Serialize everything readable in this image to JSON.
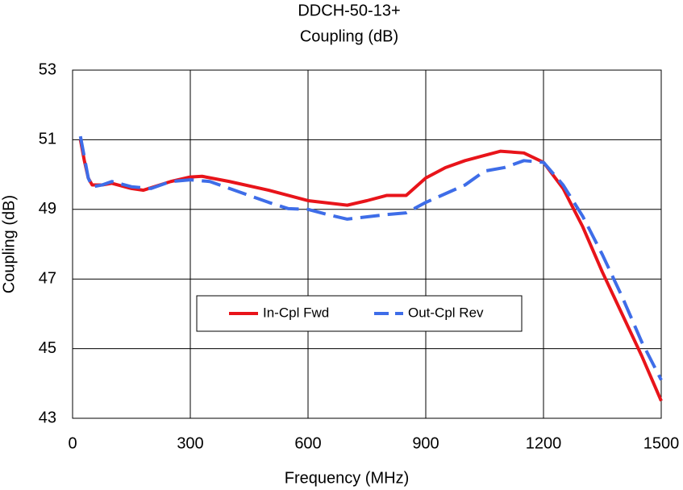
{
  "chart_data": {
    "type": "line",
    "title": "DDCH-50-13+",
    "subtitle": "Coupling (dB)",
    "x_label": "Frequency (MHz)",
    "y_label": "Coupling (dB)",
    "xlim": [
      0,
      1500
    ],
    "xticks": [
      0,
      300,
      600,
      900,
      1200,
      1500
    ],
    "ylim": [
      43,
      53
    ],
    "yticks": [
      43,
      45,
      47,
      49,
      51,
      53
    ],
    "grid": true,
    "legend": "center",
    "series": [
      {
        "name": "In-Cpl Fwd",
        "color": "#e8141a",
        "dashed": false,
        "x": [
          20,
          30,
          40,
          50,
          75,
          100,
          150,
          180,
          250,
          300,
          330,
          400,
          500,
          600,
          700,
          750,
          800,
          850,
          900,
          950,
          1000,
          1050,
          1090,
          1150,
          1200,
          1250,
          1300,
          1350,
          1400,
          1450,
          1500
        ],
        "values": [
          51.0,
          50.4,
          49.9,
          49.7,
          49.7,
          49.75,
          49.6,
          49.55,
          49.8,
          49.93,
          49.95,
          49.8,
          49.55,
          49.25,
          49.12,
          49.25,
          49.4,
          49.4,
          49.9,
          50.2,
          50.4,
          50.55,
          50.67,
          50.62,
          50.35,
          49.6,
          48.5,
          47.2,
          46.0,
          44.8,
          43.5
        ]
      },
      {
        "name": "Out-Cpl Rev",
        "color": "#3e6de8",
        "dashed": true,
        "x": [
          20,
          30,
          40,
          50,
          75,
          100,
          150,
          200,
          250,
          300,
          350,
          400,
          500,
          550,
          600,
          650,
          700,
          800,
          850,
          900,
          1000,
          1050,
          1100,
          1150,
          1200,
          1250,
          1300,
          1350,
          1400,
          1450,
          1500
        ],
        "values": [
          51.1,
          50.5,
          49.9,
          49.65,
          49.7,
          49.8,
          49.65,
          49.6,
          49.8,
          49.85,
          49.8,
          49.6,
          49.2,
          49.02,
          49.0,
          48.85,
          48.72,
          48.85,
          48.9,
          49.2,
          49.7,
          50.1,
          50.2,
          50.4,
          50.35,
          49.7,
          48.8,
          47.7,
          46.5,
          45.2,
          44.1
        ]
      }
    ]
  }
}
